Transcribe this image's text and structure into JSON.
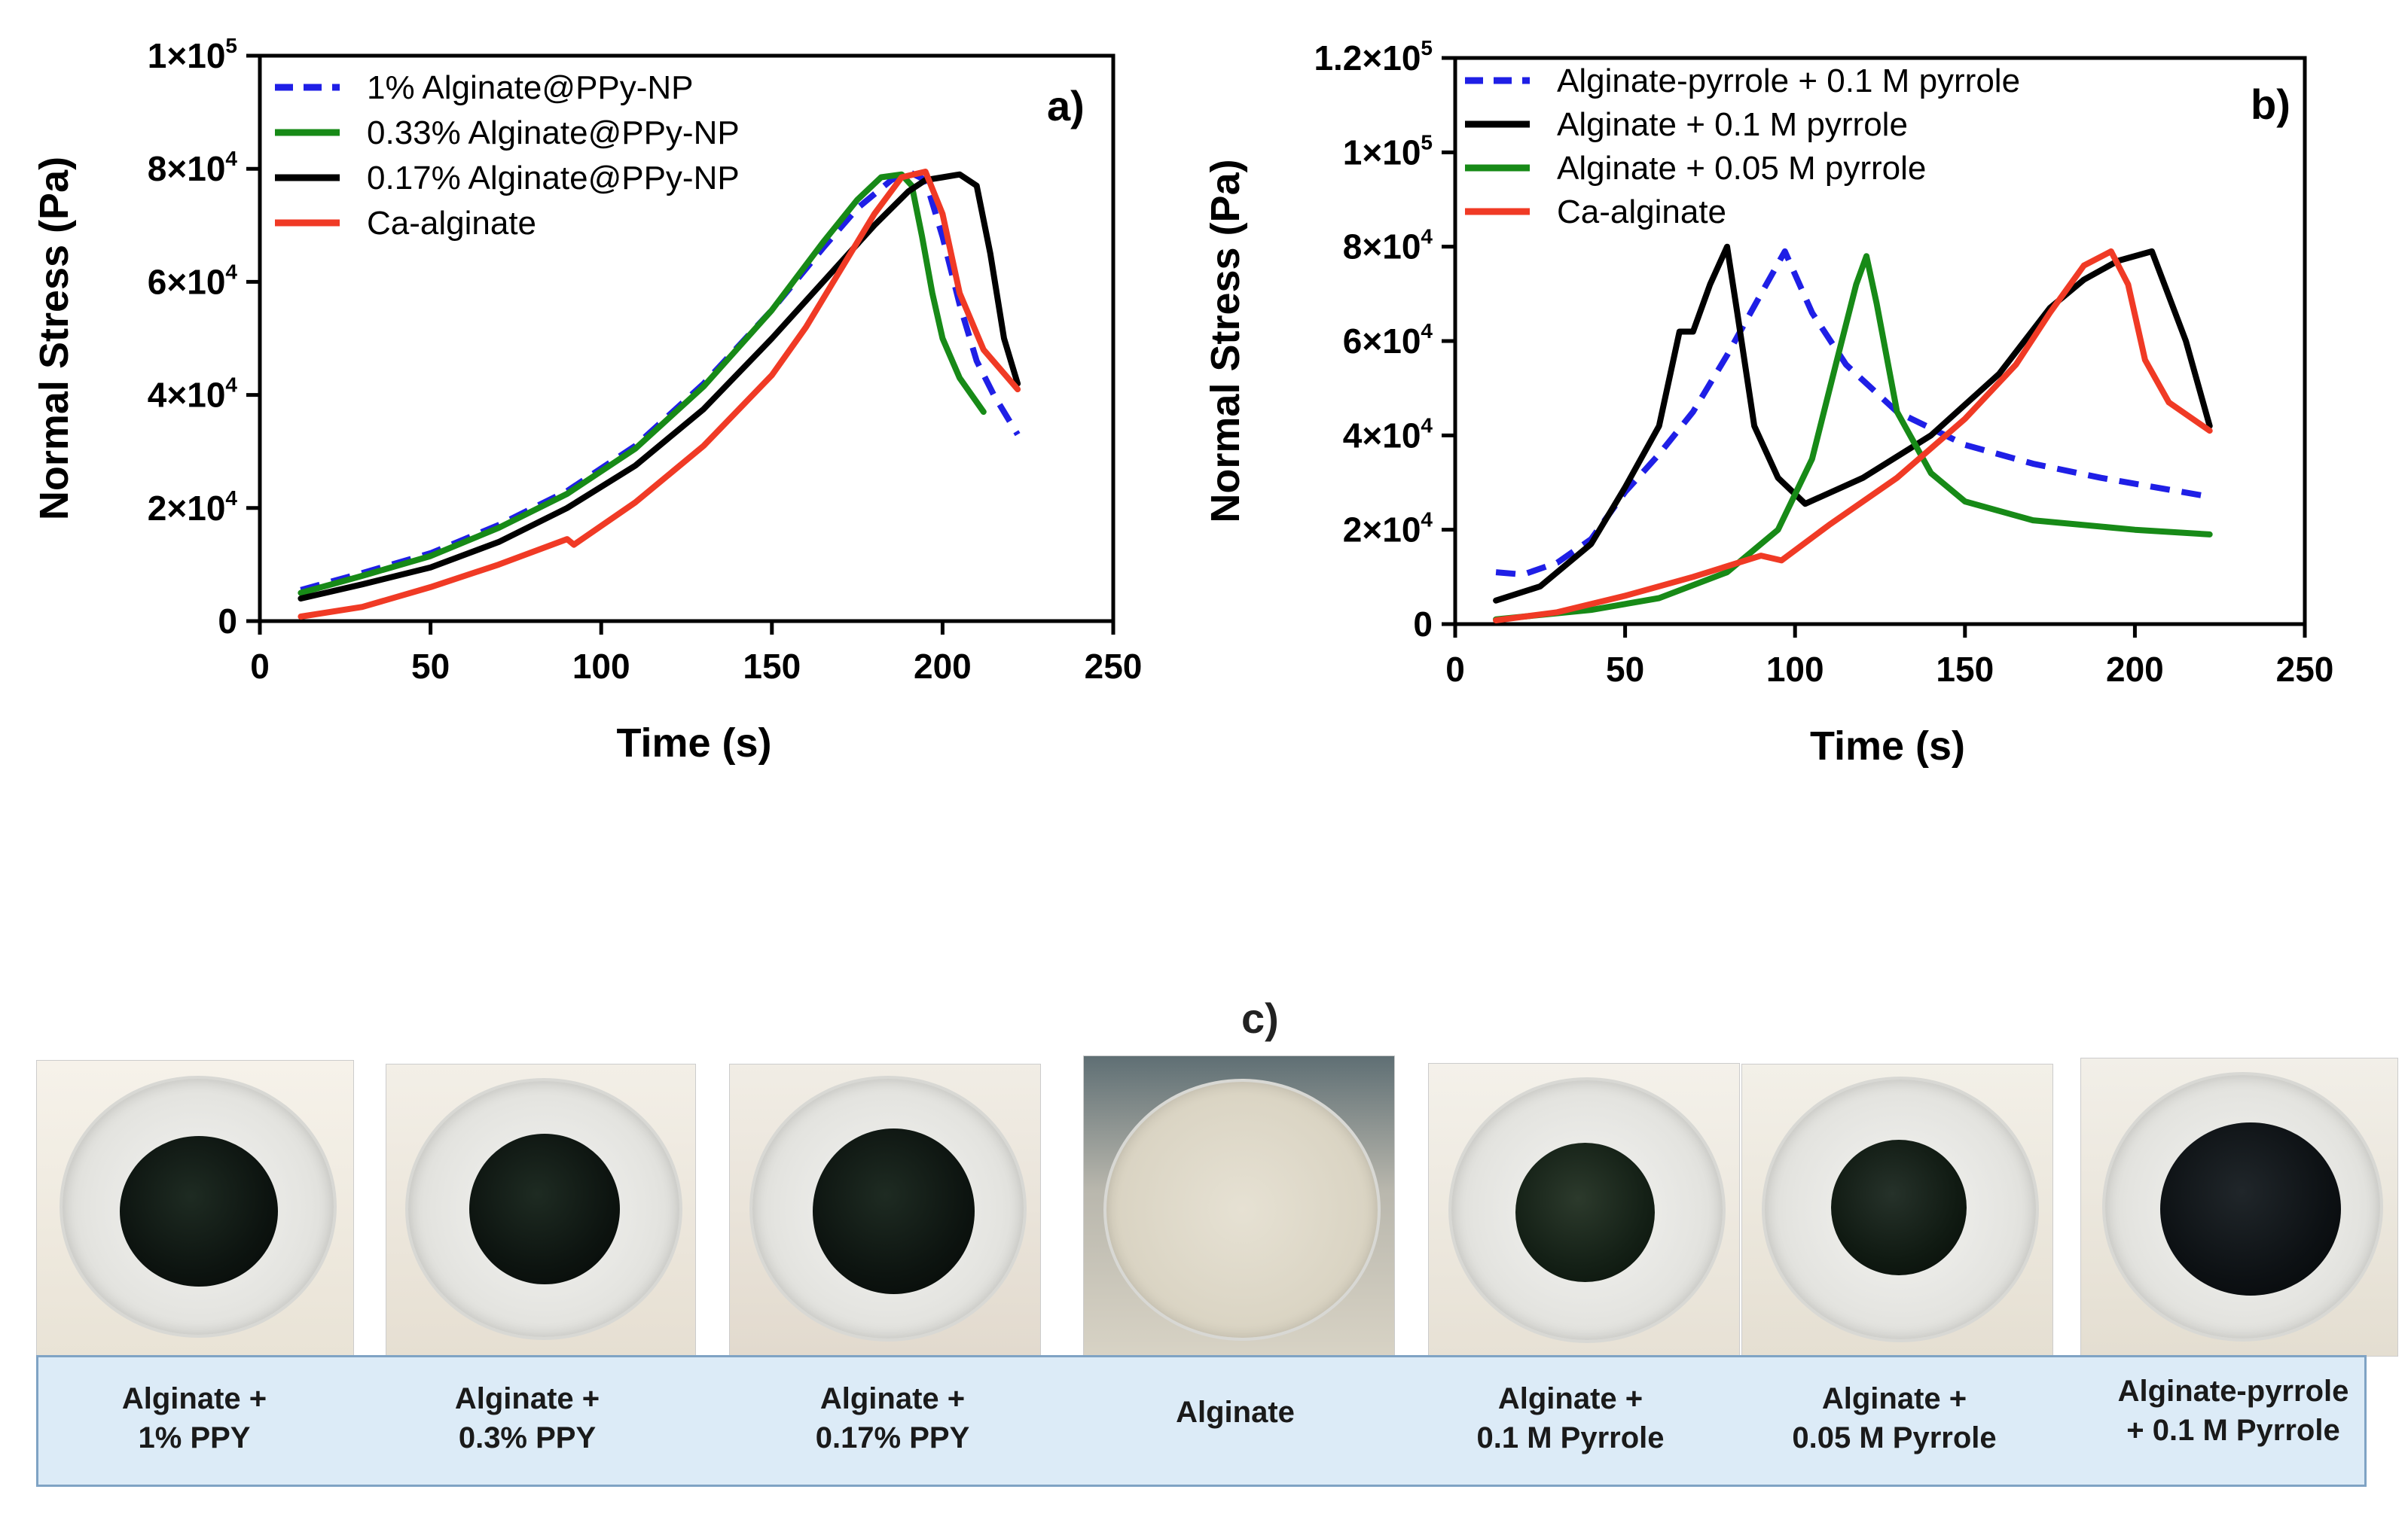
{
  "chart_data": [
    {
      "type": "line",
      "panel_label": "a)",
      "xlabel": "Time (s)",
      "ylabel": "Normal Stress (Pa)",
      "xlim": [
        0,
        250
      ],
      "ylim": [
        0,
        100000
      ],
      "xticks": [
        "0",
        "50",
        "100",
        "150",
        "200",
        "250"
      ],
      "yticks": [
        {
          "mant": "0",
          "exp": ""
        },
        {
          "mant": "2×10",
          "exp": "4"
        },
        {
          "mant": "4×10",
          "exp": "4"
        },
        {
          "mant": "6×10",
          "exp": "4"
        },
        {
          "mant": "8×10",
          "exp": "4"
        },
        {
          "mant": "1×10",
          "exp": "5"
        }
      ],
      "legend_position": "top-left",
      "series": [
        {
          "name": "1% Alginate@PPy-NP",
          "color": "#1f1fe6",
          "dash": true,
          "x": [
            12,
            30,
            50,
            70,
            90,
            110,
            130,
            150,
            165,
            175,
            185,
            190,
            195,
            200,
            205,
            210,
            215,
            222
          ],
          "y": [
            5500,
            8500,
            12000,
            17000,
            23000,
            31000,
            42000,
            55000,
            66000,
            73000,
            78000,
            79500,
            78000,
            68000,
            56000,
            46000,
            40000,
            33000
          ]
        },
        {
          "name": "0.33% Alginate@PPy-NP",
          "color": "#178a17",
          "dash": false,
          "x": [
            12,
            30,
            50,
            70,
            90,
            110,
            130,
            150,
            165,
            175,
            182,
            188,
            191,
            194,
            197,
            200,
            205,
            212
          ],
          "y": [
            5000,
            8000,
            11500,
            16500,
            22500,
            30500,
            41500,
            55000,
            67000,
            74500,
            78500,
            79000,
            77000,
            68000,
            58000,
            50000,
            43000,
            37000
          ]
        },
        {
          "name": "0.17% Alginate@PPy-NP",
          "color": "#000000",
          "dash": false,
          "x": [
            12,
            30,
            50,
            70,
            90,
            110,
            130,
            150,
            165,
            180,
            190,
            195,
            200,
            205,
            210,
            214,
            218,
            222
          ],
          "y": [
            4000,
            6500,
            9500,
            14000,
            20000,
            27500,
            37500,
            50000,
            60000,
            70000,
            76000,
            78000,
            78500,
            79000,
            77000,
            65000,
            50000,
            42000
          ]
        },
        {
          "name": "Ca-alginate",
          "color": "#f03a25",
          "dash": false,
          "x": [
            12,
            30,
            50,
            70,
            90,
            92,
            110,
            130,
            150,
            160,
            170,
            180,
            188,
            195,
            200,
            205,
            212,
            222
          ],
          "y": [
            800,
            2500,
            6000,
            10000,
            14500,
            13500,
            21000,
            31000,
            43500,
            52000,
            62000,
            72000,
            78500,
            79500,
            72000,
            58000,
            48000,
            41000
          ]
        }
      ]
    },
    {
      "type": "line",
      "panel_label": "b)",
      "xlabel": "Time (s)",
      "ylabel": "Normal Stress (Pa)",
      "xlim": [
        0,
        250
      ],
      "ylim": [
        0,
        120000
      ],
      "xticks": [
        "0",
        "50",
        "100",
        "150",
        "200",
        "250"
      ],
      "yticks": [
        {
          "mant": "0",
          "exp": ""
        },
        {
          "mant": "2×10",
          "exp": "4"
        },
        {
          "mant": "4×10",
          "exp": "4"
        },
        {
          "mant": "6×10",
          "exp": "4"
        },
        {
          "mant": "8×10",
          "exp": "4"
        },
        {
          "mant": "1×10",
          "exp": "5"
        },
        {
          "mant": "1.2×10",
          "exp": "5"
        }
      ],
      "legend_position": "top-left",
      "series": [
        {
          "name": "Alginate-pyrrole + 0.1 M pyrrole",
          "color": "#1f1fe6",
          "dash": true,
          "x": [
            12,
            20,
            30,
            40,
            50,
            60,
            70,
            80,
            90,
            97,
            105,
            115,
            130,
            150,
            170,
            190,
            210,
            222
          ],
          "y": [
            11000,
            10500,
            13000,
            18000,
            28000,
            36000,
            45000,
            57000,
            70000,
            79000,
            66000,
            55000,
            45000,
            38000,
            34000,
            31000,
            28500,
            27000
          ]
        },
        {
          "name": "Alginate + 0.1 M pyrrole",
          "color": "#000000",
          "dash": false,
          "x": [
            12,
            25,
            40,
            50,
            60,
            66,
            70,
            75,
            80,
            83,
            88,
            95,
            103,
            120,
            140,
            160,
            175,
            185,
            195,
            205,
            215,
            222
          ],
          "y": [
            5000,
            8000,
            17000,
            29000,
            42000,
            62000,
            62000,
            72000,
            80000,
            66000,
            42000,
            31000,
            25500,
            31000,
            40000,
            53000,
            67000,
            73000,
            77000,
            79000,
            60000,
            42000
          ]
        },
        {
          "name": "Alginate + 0.05 M pyrrole",
          "color": "#178a17",
          "dash": false,
          "x": [
            12,
            40,
            60,
            80,
            95,
            105,
            112,
            118,
            121,
            124,
            130,
            140,
            150,
            170,
            200,
            222
          ],
          "y": [
            1000,
            3000,
            5500,
            11000,
            20000,
            35000,
            55000,
            72000,
            78000,
            68000,
            45000,
            32000,
            26000,
            22000,
            20000,
            19000
          ]
        },
        {
          "name": "Ca-alginate",
          "color": "#f03a25",
          "dash": false,
          "x": [
            12,
            30,
            50,
            70,
            90,
            96,
            110,
            130,
            150,
            165,
            175,
            185,
            193,
            198,
            203,
            210,
            222
          ],
          "y": [
            800,
            2500,
            6000,
            10000,
            14500,
            13500,
            21000,
            31000,
            43500,
            55000,
            66000,
            76000,
            79000,
            72000,
            56000,
            47000,
            41000
          ]
        }
      ]
    }
  ],
  "panel_c": {
    "label": "c)",
    "captions": [
      {
        "line1": "Alginate +",
        "line2": "1% PPY"
      },
      {
        "line1": "Alginate +",
        "line2": "0.3% PPY"
      },
      {
        "line1": "Alginate +",
        "line2": "0.17% PPY"
      },
      {
        "line1": "Alginate",
        "line2": ""
      },
      {
        "line1": "Alginate +",
        "line2": "0.1 M Pyrrole"
      },
      {
        "line1": "Alginate +",
        "line2": "0.05 M Pyrrole"
      },
      {
        "line1": "Alginate-pyrrole",
        "line2": "+ 0.1 M Pyrrole"
      }
    ]
  }
}
